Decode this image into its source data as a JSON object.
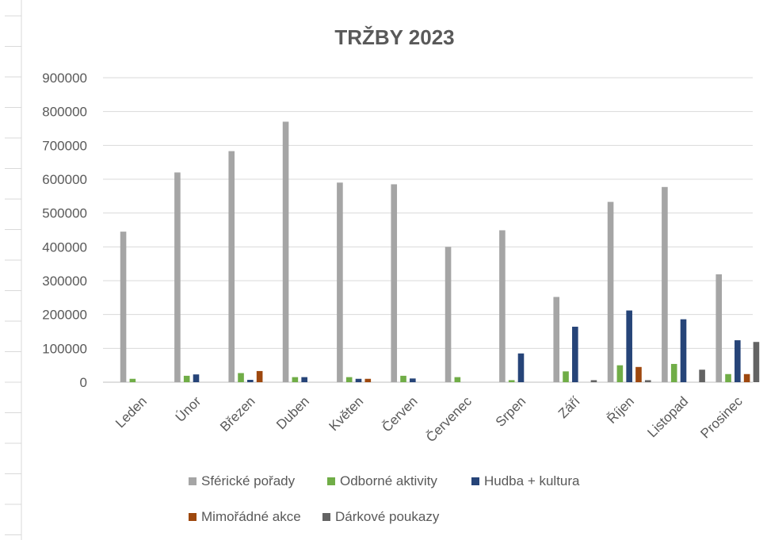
{
  "chart_data": {
    "type": "bar",
    "title": "TRŽBY 2023",
    "xlabel": "",
    "ylabel": "",
    "ylim": [
      0,
      900000
    ],
    "yticks": [
      0,
      100000,
      200000,
      300000,
      400000,
      500000,
      600000,
      700000,
      800000,
      900000
    ],
    "grid": "horizontal",
    "legend_position": "bottom",
    "categories": [
      "Leden",
      "Únor",
      "Březen",
      "Duben",
      "Květen",
      "Červen",
      "Červenec",
      "Srpen",
      "Září",
      "Říjen",
      "Listopad",
      "Prosinec"
    ],
    "series": [
      {
        "name": "Sférické pořady",
        "color": "#a5a5a5",
        "values": [
          445000,
          620000,
          683000,
          770000,
          590000,
          585000,
          400000,
          449000,
          252000,
          533000,
          577000,
          319000
        ]
      },
      {
        "name": "Odborné aktivity",
        "color": "#70ad47",
        "values": [
          10000,
          19000,
          27000,
          15000,
          15000,
          19000,
          15000,
          6000,
          32000,
          50000,
          54000,
          24000
        ]
      },
      {
        "name": "Hudba + kultura",
        "color": "#264478",
        "values": [
          0,
          23000,
          7000,
          15000,
          10000,
          11000,
          0,
          85000,
          164000,
          212000,
          186000,
          124000
        ]
      },
      {
        "name": "Mimořádné akce",
        "color": "#9e480e",
        "values": [
          0,
          0,
          33000,
          0,
          10000,
          0,
          0,
          0,
          0,
          45000,
          0,
          24000
        ]
      },
      {
        "name": "Dárkové poukazy",
        "color": "#636363",
        "values": [
          0,
          0,
          0,
          0,
          0,
          0,
          0,
          0,
          6000,
          6000,
          37000,
          119000
        ]
      }
    ]
  }
}
